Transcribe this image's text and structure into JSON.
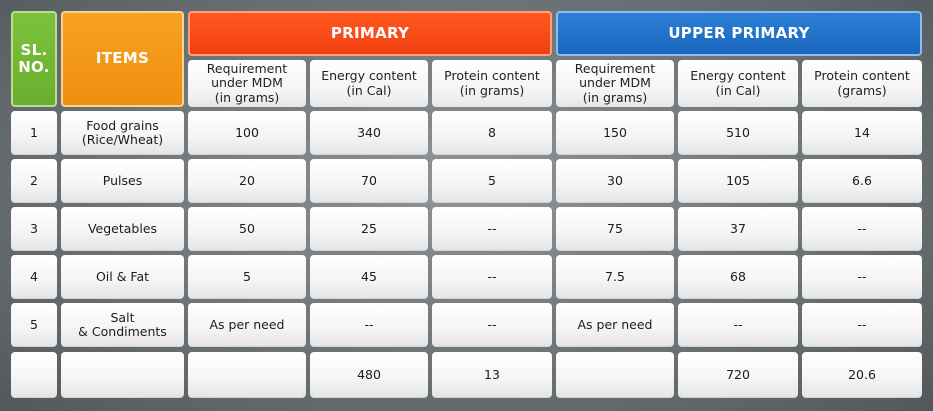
{
  "header": {
    "sl_no": "SL.\nNO.",
    "items": "ITEMS",
    "primary": "PRIMARY",
    "upper_primary": "UPPER PRIMARY",
    "primary_cols": [
      "Requirement\nunder MDM\n(in grams)",
      "Energy content\n(in Cal)",
      "Protein content\n(in grams)"
    ],
    "upper_cols": [
      "Requirement\nunder MDM\n(in grams)",
      "Energy content\n(in Cal)",
      "Protein content\n(grams)"
    ]
  },
  "rows": [
    {
      "sl": "1",
      "item": "Food grains\n(Rice/Wheat)",
      "p_req": "100",
      "p_energy": "340",
      "p_protein": "8",
      "u_req": "150",
      "u_energy": "510",
      "u_protein": "14"
    },
    {
      "sl": "2",
      "item": "Pulses",
      "p_req": "20",
      "p_energy": "70",
      "p_protein": "5",
      "u_req": "30",
      "u_energy": "105",
      "u_protein": "6.6"
    },
    {
      "sl": "3",
      "item": "Vegetables",
      "p_req": "50",
      "p_energy": "25",
      "p_protein": "--",
      "u_req": "75",
      "u_energy": "37",
      "u_protein": "--"
    },
    {
      "sl": "4",
      "item": "Oil & Fat",
      "p_req": "5",
      "p_energy": "45",
      "p_protein": "--",
      "u_req": "7.5",
      "u_energy": "68",
      "u_protein": "--"
    },
    {
      "sl": "5",
      "item": "Salt\n& Condiments",
      "p_req": "As per need",
      "p_energy": "--",
      "p_protein": "--",
      "u_req": "As per need",
      "u_energy": "--",
      "u_protein": "--"
    },
    {
      "sl": "",
      "item": "",
      "p_req": "",
      "p_energy": "480",
      "p_protein": "13",
      "u_req": "",
      "u_energy": "720",
      "u_protein": "20.6"
    }
  ],
  "colors": {
    "sl_header": "#6aae2f",
    "items_header": "#ef8e12",
    "primary_header": "#f03f10",
    "upper_primary_header": "#1a66bd"
  }
}
